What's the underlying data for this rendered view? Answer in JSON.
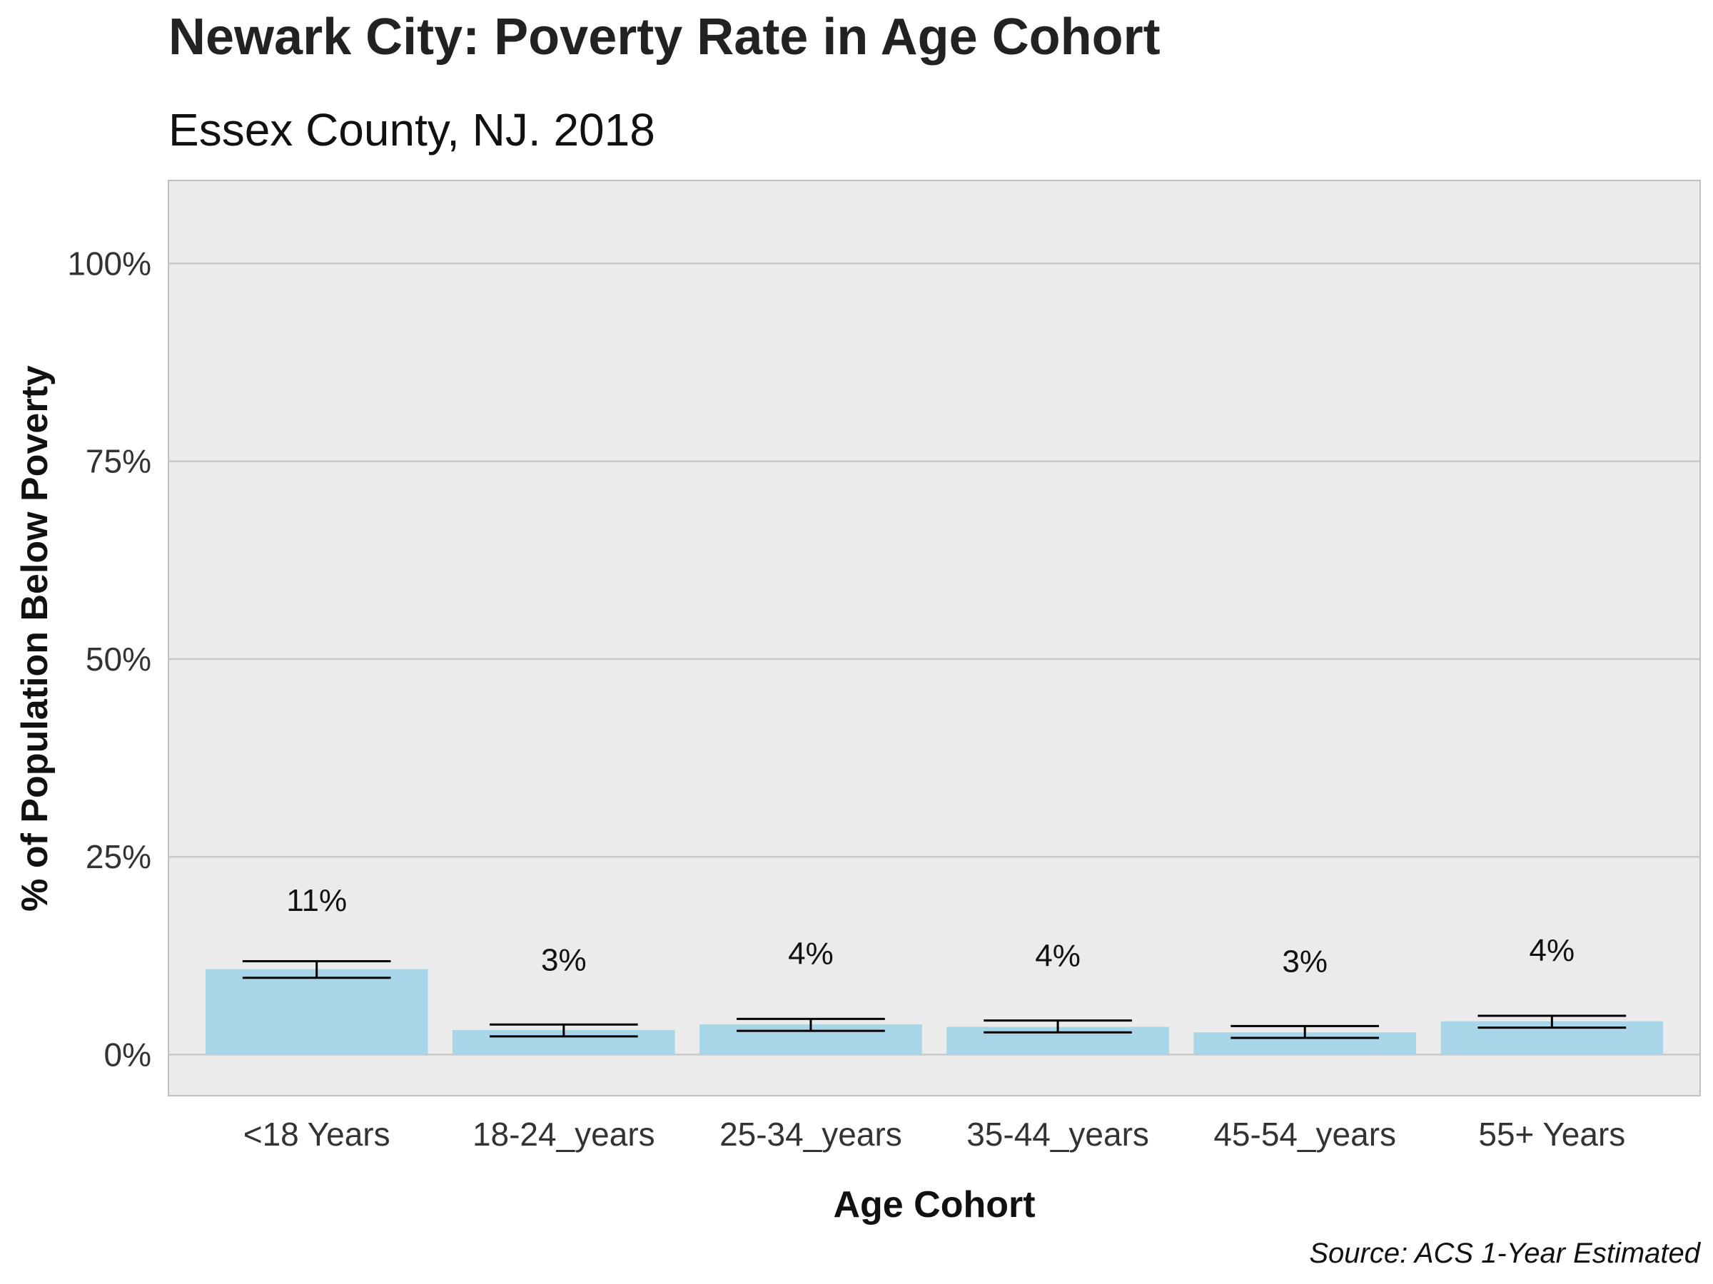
{
  "chart_data": {
    "type": "bar",
    "title": "Newark City: Poverty Rate in Age Cohort",
    "subtitle": "Essex County, NJ. 2018",
    "xlabel": "Age Cohort",
    "ylabel": "% of Population Below Poverty",
    "caption": "Source: ACS 1-Year Estimated",
    "categories": [
      "<18 Years",
      "18-24_years",
      "25-34_years",
      "35-44_years",
      "45-54_years",
      "55+ Years"
    ],
    "values": [
      10.8,
      3.1,
      3.8,
      3.5,
      2.8,
      4.2
    ],
    "error_low": [
      9.7,
      2.3,
      3.0,
      2.8,
      2.1,
      3.4
    ],
    "error_high": [
      11.8,
      3.8,
      4.5,
      4.3,
      3.6,
      4.9
    ],
    "labels": [
      "11%",
      "3%",
      "4%",
      "4%",
      "3%",
      "4%"
    ],
    "label_y": [
      19.5,
      12.0,
      12.8,
      12.5,
      11.8,
      13.2
    ],
    "ylim": [
      -5.2,
      110.5
    ],
    "yticks": [
      0,
      25,
      50,
      75,
      100
    ],
    "ytick_labels": [
      "0%",
      "25%",
      "50%",
      "75%",
      "100%"
    ],
    "grid": true,
    "legend": "none",
    "colors": {
      "bar": "#a8d6e8",
      "panel": "#ebebeb",
      "grid": "#c8c8c8",
      "errorbar": "#000000"
    }
  }
}
